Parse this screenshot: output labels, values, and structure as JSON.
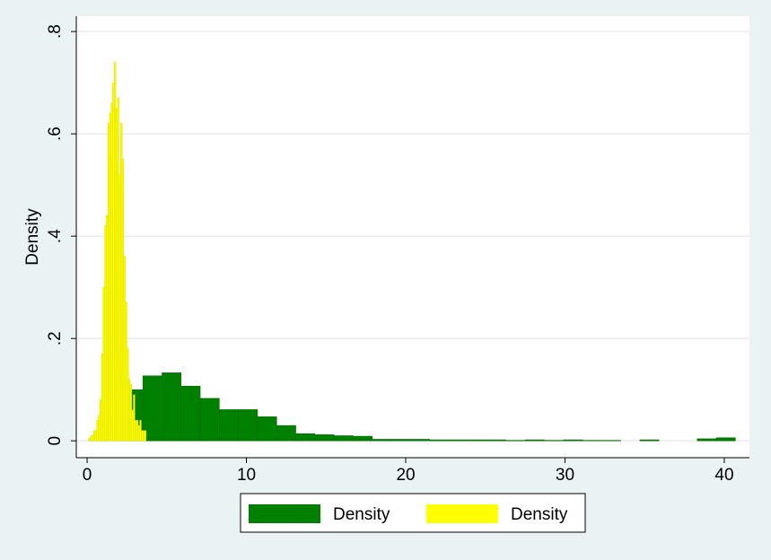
{
  "chart_data": {
    "type": "histogram",
    "y_label": "Density",
    "xlim": [
      -0.68,
      41.58
    ],
    "ylim": [
      -0.033,
      0.83
    ],
    "xticks": [
      0,
      10,
      20,
      30,
      40
    ],
    "yticks": [
      0,
      {
        "value": 0.2,
        "label": ".2"
      },
      {
        "value": 0.4,
        "label": ".4"
      },
      {
        "value": 0.6,
        "label": ".6"
      },
      {
        "value": 0.8,
        "label": ".8"
      }
    ],
    "grid": true,
    "legend": "bottom",
    "series": [
      {
        "name": "Density",
        "color": "#008000",
        "bins": [
          2.3,
          3.5,
          4.7,
          5.9,
          7.1,
          8.3,
          9.5,
          10.7,
          11.9,
          13.1,
          14.3,
          15.5,
          16.7,
          17.9,
          19.1,
          20.3,
          21.5,
          22.7,
          23.9,
          25.1,
          26.3,
          27.5,
          28.7,
          29.9,
          31.1,
          32.3,
          33.5,
          34.7,
          35.9,
          37.1,
          38.3,
          39.5,
          40.7
        ],
        "values": [
          0.1,
          0.127,
          0.133,
          0.107,
          0.083,
          0.061,
          0.061,
          0.047,
          0.03,
          0.014,
          0.012,
          0.01,
          0.009,
          0.003,
          0.003,
          0.003,
          0.002,
          0.002,
          0.002,
          0.002,
          0.001,
          0.002,
          0.001,
          0.002,
          0.001,
          0.001,
          0,
          0.002,
          0,
          0,
          0.004,
          0.006
        ]
      },
      {
        "name": "Density",
        "color": "#ffff00",
        "bins": [
          0.1,
          0.2,
          0.3,
          0.4,
          0.5,
          0.6,
          0.7,
          0.8,
          0.9,
          1.0,
          1.1,
          1.2,
          1.3,
          1.4,
          1.5,
          1.6,
          1.7,
          1.8,
          1.9,
          2.0,
          2.1,
          2.2,
          2.3,
          2.4,
          2.5,
          2.6,
          2.7,
          2.8,
          2.9,
          3.0,
          3.1,
          3.2,
          3.3,
          3.4,
          3.5,
          3.6,
          3.7
        ],
        "values": [
          0.005,
          0.01,
          0.01,
          0.02,
          0.02,
          0.04,
          0.05,
          0.08,
          0.17,
          0.3,
          0.42,
          0.44,
          0.62,
          0.64,
          0.66,
          0.7,
          0.74,
          0.65,
          0.67,
          0.52,
          0.62,
          0.55,
          0.36,
          0.27,
          0.18,
          0.12,
          0.11,
          0.06,
          0.09,
          0.04,
          0.04,
          0.03,
          0.04,
          0.02,
          0.02,
          0.02
        ]
      }
    ]
  }
}
